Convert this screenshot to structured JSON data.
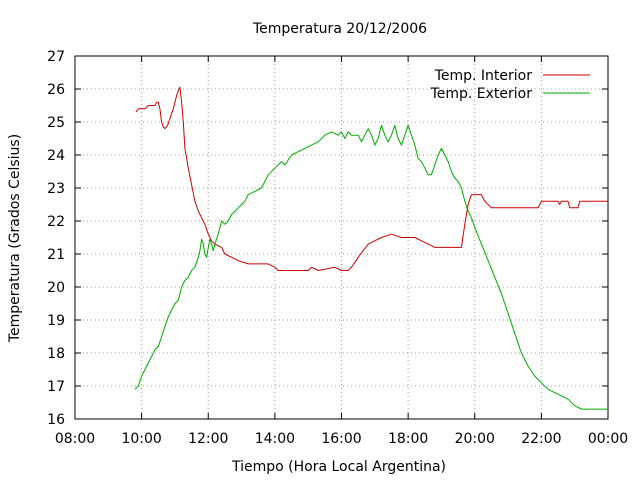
{
  "chart_data": {
    "type": "line",
    "title": "Temperatura 20/12/2006",
    "xlabel": "Tiempo (Hora Local Argentina)",
    "ylabel": "Temperatura (Grados Celsius)",
    "xlim": [
      8,
      24
    ],
    "ylim": [
      16,
      27
    ],
    "grid": true,
    "legend_position": "top-right",
    "x_ticks": [
      {
        "value": 8,
        "label": "08:00"
      },
      {
        "value": 10,
        "label": "10:00"
      },
      {
        "value": 12,
        "label": "12:00"
      },
      {
        "value": 14,
        "label": "14:00"
      },
      {
        "value": 16,
        "label": "16:00"
      },
      {
        "value": 18,
        "label": "18:00"
      },
      {
        "value": 20,
        "label": "20:00"
      },
      {
        "value": 22,
        "label": "22:00"
      },
      {
        "value": 24,
        "label": "00:00"
      }
    ],
    "y_ticks": [
      {
        "value": 16,
        "label": "16"
      },
      {
        "value": 17,
        "label": "17"
      },
      {
        "value": 18,
        "label": "18"
      },
      {
        "value": 19,
        "label": "19"
      },
      {
        "value": 20,
        "label": "20"
      },
      {
        "value": 21,
        "label": "21"
      },
      {
        "value": 22,
        "label": "22"
      },
      {
        "value": 23,
        "label": "23"
      },
      {
        "value": 24,
        "label": "24"
      },
      {
        "value": 25,
        "label": "25"
      },
      {
        "value": 26,
        "label": "26"
      },
      {
        "value": 27,
        "label": "27"
      }
    ],
    "series": [
      {
        "name": "Temp. Interior",
        "color": "#cc0000",
        "points": [
          [
            9.83,
            25.3
          ],
          [
            9.9,
            25.4
          ],
          [
            10.1,
            25.4
          ],
          [
            10.2,
            25.5
          ],
          [
            10.4,
            25.5
          ],
          [
            10.45,
            25.6
          ],
          [
            10.5,
            25.6
          ],
          [
            10.55,
            25.4
          ],
          [
            10.6,
            25.0
          ],
          [
            10.65,
            24.85
          ],
          [
            10.7,
            24.8
          ],
          [
            10.78,
            24.9
          ],
          [
            10.85,
            25.1
          ],
          [
            10.95,
            25.4
          ],
          [
            11.05,
            25.8
          ],
          [
            11.12,
            26.0
          ],
          [
            11.15,
            26.05
          ],
          [
            11.2,
            25.6
          ],
          [
            11.25,
            25.0
          ],
          [
            11.3,
            24.2
          ],
          [
            11.4,
            23.6
          ],
          [
            11.5,
            23.1
          ],
          [
            11.6,
            22.6
          ],
          [
            11.7,
            22.3
          ],
          [
            11.8,
            22.1
          ],
          [
            11.9,
            21.9
          ],
          [
            12.0,
            21.6
          ],
          [
            12.1,
            21.4
          ],
          [
            12.2,
            21.3
          ],
          [
            12.4,
            21.2
          ],
          [
            12.5,
            21.0
          ],
          [
            12.7,
            20.9
          ],
          [
            12.9,
            20.8
          ],
          [
            13.2,
            20.7
          ],
          [
            13.8,
            20.7
          ],
          [
            14.0,
            20.6
          ],
          [
            14.1,
            20.5
          ],
          [
            15.0,
            20.5
          ],
          [
            15.1,
            20.6
          ],
          [
            15.3,
            20.5
          ],
          [
            15.8,
            20.6
          ],
          [
            16.0,
            20.5
          ],
          [
            16.2,
            20.5
          ],
          [
            16.3,
            20.6
          ],
          [
            16.5,
            20.9
          ],
          [
            16.8,
            21.3
          ],
          [
            17.0,
            21.4
          ],
          [
            17.2,
            21.5
          ],
          [
            17.5,
            21.6
          ],
          [
            17.8,
            21.5
          ],
          [
            18.2,
            21.5
          ],
          [
            18.4,
            21.4
          ],
          [
            18.6,
            21.3
          ],
          [
            18.8,
            21.2
          ],
          [
            19.6,
            21.2
          ],
          [
            19.7,
            21.9
          ],
          [
            19.8,
            22.5
          ],
          [
            19.9,
            22.8
          ],
          [
            20.2,
            22.8
          ],
          [
            20.3,
            22.6
          ],
          [
            20.5,
            22.4
          ],
          [
            20.8,
            22.4
          ],
          [
            21.9,
            22.4
          ],
          [
            22.0,
            22.6
          ],
          [
            22.5,
            22.6
          ],
          [
            22.55,
            22.5
          ],
          [
            22.6,
            22.6
          ],
          [
            22.8,
            22.6
          ],
          [
            22.85,
            22.4
          ],
          [
            23.1,
            22.4
          ],
          [
            23.15,
            22.6
          ],
          [
            24.0,
            22.6
          ]
        ]
      },
      {
        "name": "Temp. Exterior",
        "color": "#00aa00",
        "points": [
          [
            9.8,
            16.9
          ],
          [
            9.9,
            17.0
          ],
          [
            10.0,
            17.3
          ],
          [
            10.1,
            17.5
          ],
          [
            10.2,
            17.7
          ],
          [
            10.3,
            17.9
          ],
          [
            10.4,
            18.1
          ],
          [
            10.5,
            18.2
          ],
          [
            10.6,
            18.5
          ],
          [
            10.7,
            18.8
          ],
          [
            10.8,
            19.1
          ],
          [
            10.9,
            19.3
          ],
          [
            11.0,
            19.5
          ],
          [
            11.1,
            19.6
          ],
          [
            11.2,
            20.0
          ],
          [
            11.3,
            20.2
          ],
          [
            11.4,
            20.3
          ],
          [
            11.5,
            20.5
          ],
          [
            11.6,
            20.6
          ],
          [
            11.7,
            20.9
          ],
          [
            11.75,
            21.1
          ],
          [
            11.8,
            21.45
          ],
          [
            11.85,
            21.3
          ],
          [
            11.9,
            21.0
          ],
          [
            11.95,
            20.9
          ],
          [
            12.0,
            21.2
          ],
          [
            12.05,
            21.45
          ],
          [
            12.1,
            21.3
          ],
          [
            12.15,
            21.1
          ],
          [
            12.2,
            21.3
          ],
          [
            12.3,
            21.6
          ],
          [
            12.4,
            22.0
          ],
          [
            12.5,
            21.9
          ],
          [
            12.6,
            22.0
          ],
          [
            12.7,
            22.2
          ],
          [
            12.8,
            22.3
          ],
          [
            12.9,
            22.4
          ],
          [
            13.0,
            22.5
          ],
          [
            13.1,
            22.6
          ],
          [
            13.2,
            22.8
          ],
          [
            13.4,
            22.9
          ],
          [
            13.6,
            23.0
          ],
          [
            13.8,
            23.4
          ],
          [
            14.0,
            23.6
          ],
          [
            14.2,
            23.8
          ],
          [
            14.3,
            23.7
          ],
          [
            14.5,
            24.0
          ],
          [
            14.7,
            24.1
          ],
          [
            14.9,
            24.2
          ],
          [
            15.1,
            24.3
          ],
          [
            15.3,
            24.4
          ],
          [
            15.5,
            24.6
          ],
          [
            15.7,
            24.7
          ],
          [
            15.9,
            24.6
          ],
          [
            16.0,
            24.7
          ],
          [
            16.1,
            24.5
          ],
          [
            16.2,
            24.7
          ],
          [
            16.3,
            24.6
          ],
          [
            16.5,
            24.6
          ],
          [
            16.6,
            24.4
          ],
          [
            16.7,
            24.6
          ],
          [
            16.8,
            24.8
          ],
          [
            16.9,
            24.6
          ],
          [
            17.0,
            24.3
          ],
          [
            17.1,
            24.5
          ],
          [
            17.2,
            24.9
          ],
          [
            17.3,
            24.6
          ],
          [
            17.4,
            24.4
          ],
          [
            17.5,
            24.6
          ],
          [
            17.6,
            24.9
          ],
          [
            17.7,
            24.5
          ],
          [
            17.8,
            24.3
          ],
          [
            17.9,
            24.6
          ],
          [
            18.0,
            24.9
          ],
          [
            18.1,
            24.6
          ],
          [
            18.2,
            24.3
          ],
          [
            18.3,
            23.9
          ],
          [
            18.4,
            23.8
          ],
          [
            18.5,
            23.6
          ],
          [
            18.6,
            23.4
          ],
          [
            18.7,
            23.4
          ],
          [
            18.8,
            23.7
          ],
          [
            18.9,
            24.0
          ],
          [
            19.0,
            24.2
          ],
          [
            19.1,
            24.0
          ],
          [
            19.2,
            23.8
          ],
          [
            19.3,
            23.5
          ],
          [
            19.4,
            23.3
          ],
          [
            19.5,
            23.2
          ],
          [
            19.6,
            23.0
          ],
          [
            19.7,
            22.6
          ],
          [
            19.8,
            22.3
          ],
          [
            19.9,
            22.1
          ],
          [
            20.0,
            21.8
          ],
          [
            20.2,
            21.3
          ],
          [
            20.4,
            20.8
          ],
          [
            20.6,
            20.3
          ],
          [
            20.8,
            19.8
          ],
          [
            21.0,
            19.2
          ],
          [
            21.2,
            18.6
          ],
          [
            21.4,
            18.0
          ],
          [
            21.6,
            17.6
          ],
          [
            21.8,
            17.3
          ],
          [
            22.0,
            17.1
          ],
          [
            22.2,
            16.9
          ],
          [
            22.4,
            16.8
          ],
          [
            22.6,
            16.7
          ],
          [
            22.8,
            16.6
          ],
          [
            23.0,
            16.4
          ],
          [
            23.2,
            16.3
          ],
          [
            23.5,
            16.3
          ],
          [
            24.0,
            16.3
          ]
        ]
      }
    ]
  }
}
